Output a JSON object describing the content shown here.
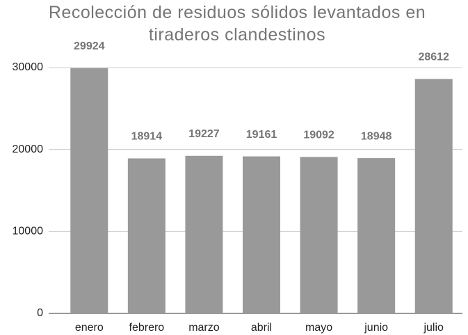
{
  "chart_data": {
    "type": "bar",
    "title": "Recolección de residuos sólidos levantados en tiraderos clandestinos",
    "categories": [
      "enero",
      "febrero",
      "marzo",
      "abril",
      "mayo",
      "junio",
      "julio"
    ],
    "values": [
      29924,
      18914,
      19227,
      19161,
      19092,
      18948,
      28612
    ],
    "color": "#999999",
    "ylim": [
      0,
      30000
    ],
    "yticks": [
      0,
      10000,
      20000,
      30000
    ],
    "grid": true
  }
}
